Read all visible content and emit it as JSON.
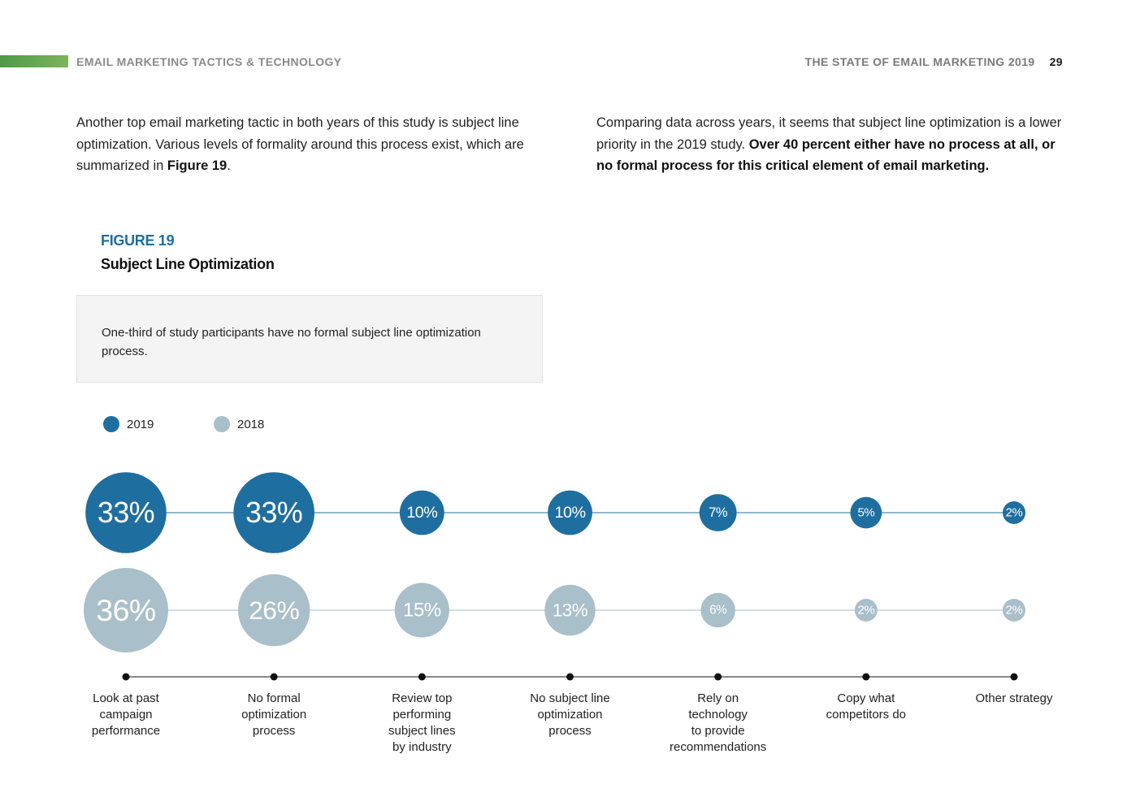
{
  "header": {
    "section": "EMAIL MARKETING TACTICS & TECHNOLOGY",
    "report": "THE STATE OF EMAIL MARKETING 2019",
    "page": "29"
  },
  "intro_left": {
    "text": "Another top email marketing tactic in both years of this study is subject line optimization. Various levels of formality around this process exist, which are summarized in ",
    "bold": "Figure 19",
    "end": "."
  },
  "intro_right": {
    "text": "Comparing data across years, it seems that subject line optimization is a lower priority in the 2019 study. ",
    "bold": "Over 40 percent either have no process at all, or no formal process for this critical element of email marketing."
  },
  "figure": {
    "label": "FIGURE 19",
    "title": "Subject Line Optimization",
    "callout": "One-third of study participants have no formal subject line optimization process."
  },
  "colors": {
    "y2019": "#1f6ea0",
    "y2018": "#a9bfca",
    "axis": "#111111"
  },
  "chart_data": {
    "type": "bubble",
    "title": "Subject Line Optimization",
    "categories": [
      "Look at past\ncampaign\nperformance",
      "No formal\noptimization\nprocess",
      "Review top\nperforming\nsubject lines\nby industry",
      "No subject line\noptimization\nprocess",
      "Rely on\ntechnology\nto provide\nrecommendations",
      "Copy what\ncompetitors do",
      "Other strategy"
    ],
    "series": [
      {
        "name": "2019",
        "values": [
          33,
          33,
          10,
          10,
          7,
          5,
          2
        ],
        "color": "#1f6ea0"
      },
      {
        "name": "2018",
        "values": [
          36,
          26,
          15,
          13,
          6,
          2,
          2
        ],
        "color": "#a9bfca"
      }
    ],
    "unit": "%",
    "legend": "top-left"
  }
}
